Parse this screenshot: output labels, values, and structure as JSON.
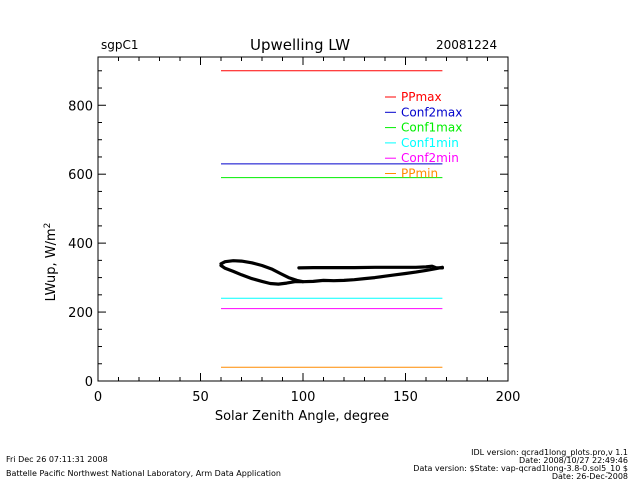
{
  "header": {
    "site": "sgpC1",
    "title": "Upwelling LW",
    "date": "20081224"
  },
  "footer": {
    "run_time": "Fri Dec 26 07:11:31 2008",
    "lab": "Battelle Pacific Northwest National Laboratory, Arm Data Application",
    "idl_version": "IDL version: qcrad1long_plots.pro,v 1.1",
    "code_date": "Date: 2008/10/27 22:49:46",
    "data_version": "Data version: $State: vap-qcrad1long-3.8-0.sol5_10 $",
    "data_date": "Date: 26-Dec-2008"
  },
  "chart_data": {
    "type": "line",
    "title": "Upwelling LW",
    "xlabel": "Solar Zenith Angle, degree",
    "ylabel": "LWup, W/m",
    "ylabel_sup": "2",
    "xlim": [
      0,
      200
    ],
    "ylim": [
      0,
      940
    ],
    "xticks": [
      0,
      50,
      100,
      150,
      200
    ],
    "yticks": [
      0,
      200,
      400,
      600,
      800
    ],
    "grid": false,
    "legend_position": "top-right",
    "thresholds": [
      {
        "name": "PPmax",
        "value": 900,
        "color": "#ff0000",
        "x_range": [
          60,
          168
        ]
      },
      {
        "name": "Conf2max",
        "value": 630,
        "color": "#0000cc",
        "x_range": [
          60,
          168
        ]
      },
      {
        "name": "Conf1max",
        "value": 590,
        "color": "#00ee00",
        "x_range": [
          60,
          168
        ]
      },
      {
        "name": "Conf1min",
        "value": 240,
        "color": "#00ffff",
        "x_range": [
          60,
          168
        ]
      },
      {
        "name": "Conf2min",
        "value": 210,
        "color": "#ff00ff",
        "x_range": [
          60,
          168
        ]
      },
      {
        "name": "PPmin",
        "value": 40,
        "color": "#ff8c00",
        "x_range": [
          60,
          168
        ]
      }
    ],
    "series": [
      {
        "color": "#000000",
        "segments": [
          [
            [
              60,
              340
            ],
            [
              62,
              346
            ],
            [
              66,
              349
            ],
            [
              70,
              348
            ],
            [
              75,
              343
            ],
            [
              80,
              335
            ],
            [
              85,
              324
            ],
            [
              89,
              312
            ],
            [
              93,
              300
            ],
            [
              97,
              292
            ],
            [
              100,
              288
            ],
            [
              96,
              288
            ],
            [
              92,
              284
            ],
            [
              88,
              281
            ],
            [
              84,
              283
            ],
            [
              80,
              289
            ],
            [
              75,
              297
            ],
            [
              70,
              308
            ],
            [
              66,
              318
            ],
            [
              62,
              327
            ],
            [
              60,
              335
            ]
          ],
          [
            [
              100,
              288
            ],
            [
              105,
              289
            ],
            [
              110,
              292
            ],
            [
              115,
              291
            ],
            [
              120,
              292
            ],
            [
              125,
              294
            ],
            [
              130,
              297
            ],
            [
              135,
              300
            ],
            [
              140,
              304
            ],
            [
              145,
              308
            ],
            [
              150,
              312
            ],
            [
              155,
              316
            ],
            [
              160,
              321
            ],
            [
              165,
              326
            ],
            [
              168,
              330
            ]
          ],
          [
            [
              98,
              328
            ],
            [
              105,
              329
            ],
            [
              115,
              329
            ],
            [
              125,
              329
            ],
            [
              135,
              330
            ],
            [
              145,
              330
            ],
            [
              155,
              330
            ],
            [
              160,
              331
            ],
            [
              163,
              333
            ],
            [
              165,
              328
            ],
            [
              168,
              328
            ]
          ]
        ]
      }
    ]
  }
}
